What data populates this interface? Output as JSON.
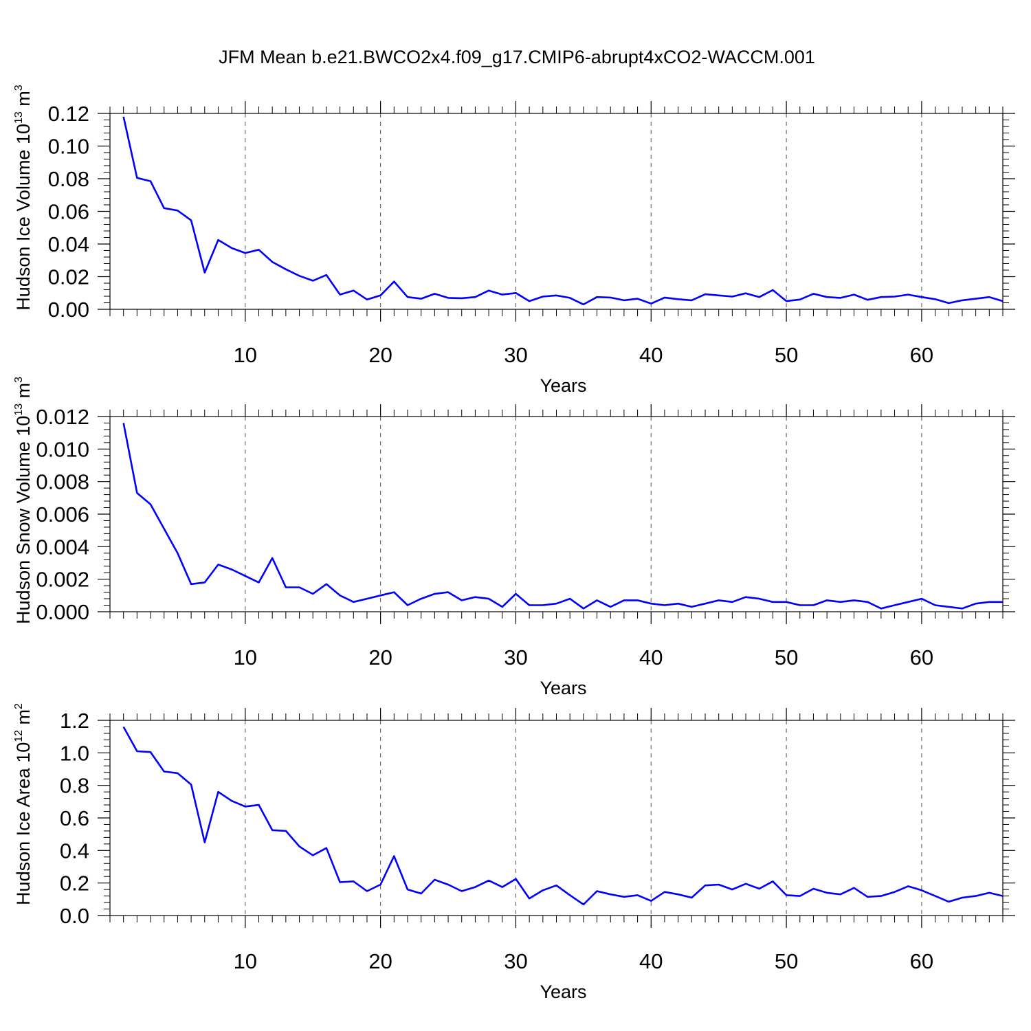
{
  "title": "JFM Mean b.e21.BWCO2x4.f09_g17.CMIP6-abrupt4xCO2-WACCM.001",
  "colors": {
    "line": "#0000ff",
    "axis": "#000000",
    "grid": "#555555"
  },
  "chart_data": [
    {
      "type": "line",
      "ylabel_main": "Hudson Ice Volume 10",
      "ylabel_exp": "13",
      "ylabel_unit": "m",
      "ylabel_unit_exp": "3",
      "xlabel": "Years",
      "xlim": [
        0,
        66
      ],
      "ylim": [
        0,
        0.12
      ],
      "x_ticks": [
        10,
        20,
        30,
        40,
        50,
        60
      ],
      "x_tick_labels": [
        "10",
        "20",
        "30",
        "40",
        "50",
        "60"
      ],
      "y_ticks": [
        0,
        0.02,
        0.04,
        0.06,
        0.08,
        0.1,
        0.12
      ],
      "y_tick_labels": [
        "0.00",
        "0.02",
        "0.04",
        "0.06",
        "0.08",
        "0.10",
        "0.12"
      ],
      "x": [
        1,
        2,
        3,
        4,
        5,
        6,
        7,
        8,
        9,
        10,
        11,
        12,
        13,
        14,
        15,
        16,
        17,
        18,
        19,
        20,
        21,
        22,
        23,
        24,
        25,
        26,
        27,
        28,
        29,
        30,
        31,
        32,
        33,
        34,
        35,
        36,
        37,
        38,
        39,
        40,
        41,
        42,
        43,
        44,
        45,
        46,
        47,
        48,
        49,
        50,
        51,
        52,
        53,
        54,
        55,
        56,
        57,
        58,
        59,
        60,
        61,
        62,
        63,
        64,
        65,
        66
      ],
      "values": [
        0.118,
        0.0805,
        0.0785,
        0.062,
        0.0605,
        0.0545,
        0.0225,
        0.0425,
        0.0375,
        0.0345,
        0.0365,
        0.029,
        0.0245,
        0.0205,
        0.0175,
        0.021,
        0.009,
        0.0115,
        0.006,
        0.0085,
        0.017,
        0.0075,
        0.0065,
        0.0095,
        0.007,
        0.0068,
        0.0075,
        0.0115,
        0.009,
        0.01,
        0.005,
        0.0078,
        0.0085,
        0.007,
        0.003,
        0.0075,
        0.0072,
        0.0055,
        0.0065,
        0.0035,
        0.0072,
        0.0062,
        0.0055,
        0.0092,
        0.0085,
        0.0078,
        0.0098,
        0.0075,
        0.0118,
        0.005,
        0.006,
        0.0095,
        0.0075,
        0.007,
        0.009,
        0.0058,
        0.0075,
        0.0078,
        0.009,
        0.0075,
        0.0062,
        0.0038,
        0.0055,
        0.0065,
        0.0075,
        0.005
      ]
    },
    {
      "type": "line",
      "ylabel_main": "Hudson Snow Volume 10",
      "ylabel_exp": "13",
      "ylabel_unit": "m",
      "ylabel_unit_exp": "3",
      "xlabel": "Years",
      "xlim": [
        0,
        66
      ],
      "ylim": [
        0,
        0.012
      ],
      "x_ticks": [
        10,
        20,
        30,
        40,
        50,
        60
      ],
      "x_tick_labels": [
        "10",
        "20",
        "30",
        "40",
        "50",
        "60"
      ],
      "y_ticks": [
        0,
        0.002,
        0.004,
        0.006,
        0.008,
        0.01,
        0.012
      ],
      "y_tick_labels": [
        "0.000",
        "0.002",
        "0.004",
        "0.006",
        "0.008",
        "0.010",
        "0.012"
      ],
      "x": [
        1,
        2,
        3,
        4,
        5,
        6,
        7,
        8,
        9,
        10,
        11,
        12,
        13,
        14,
        15,
        16,
        17,
        18,
        19,
        20,
        21,
        22,
        23,
        24,
        25,
        26,
        27,
        28,
        29,
        30,
        31,
        32,
        33,
        34,
        35,
        36,
        37,
        38,
        39,
        40,
        41,
        42,
        43,
        44,
        45,
        46,
        47,
        48,
        49,
        50,
        51,
        52,
        53,
        54,
        55,
        56,
        57,
        58,
        59,
        60,
        61,
        62,
        63,
        64,
        65,
        66
      ],
      "values": [
        0.0116,
        0.0073,
        0.0066,
        0.0051,
        0.0036,
        0.0017,
        0.0018,
        0.0029,
        0.0026,
        0.0022,
        0.0018,
        0.0033,
        0.0015,
        0.0015,
        0.0011,
        0.0017,
        0.001,
        0.0006,
        0.0008,
        0.001,
        0.0012,
        0.0004,
        0.0008,
        0.0011,
        0.0012,
        0.0007,
        0.0009,
        0.0008,
        0.0003,
        0.0011,
        0.0004,
        0.0004,
        0.0005,
        0.0008,
        0.0002,
        0.0007,
        0.0003,
        0.0007,
        0.0007,
        0.0005,
        0.0004,
        0.0005,
        0.0003,
        0.0005,
        0.0007,
        0.0006,
        0.0009,
        0.0008,
        0.0006,
        0.0006,
        0.0004,
        0.0004,
        0.0007,
        0.0006,
        0.0007,
        0.0006,
        0.0002,
        0.0004,
        0.0006,
        0.0008,
        0.0004,
        0.0003,
        0.0002,
        0.0005,
        0.0006,
        0.0006
      ]
    },
    {
      "type": "line",
      "ylabel_main": "Hudson Ice Area 10",
      "ylabel_exp": "12",
      "ylabel_unit": "m",
      "ylabel_unit_exp": "2",
      "xlabel": "Years",
      "xlim": [
        0,
        66
      ],
      "ylim": [
        0,
        1.2
      ],
      "x_ticks": [
        10,
        20,
        30,
        40,
        50,
        60
      ],
      "x_tick_labels": [
        "10",
        "20",
        "30",
        "40",
        "50",
        "60"
      ],
      "y_ticks": [
        0,
        0.2,
        0.4,
        0.6,
        0.8,
        1.0,
        1.2
      ],
      "y_tick_labels": [
        "0.0",
        "0.2",
        "0.4",
        "0.6",
        "0.8",
        "1.0",
        "1.2"
      ],
      "x": [
        1,
        2,
        3,
        4,
        5,
        6,
        7,
        8,
        9,
        10,
        11,
        12,
        13,
        14,
        15,
        16,
        17,
        18,
        19,
        20,
        21,
        22,
        23,
        24,
        25,
        26,
        27,
        28,
        29,
        30,
        31,
        32,
        33,
        34,
        35,
        36,
        37,
        38,
        39,
        40,
        41,
        42,
        43,
        44,
        45,
        46,
        47,
        48,
        49,
        50,
        51,
        52,
        53,
        54,
        55,
        56,
        57,
        58,
        59,
        60,
        61,
        62,
        63,
        64,
        65,
        66
      ],
      "values": [
        1.16,
        1.01,
        1.005,
        0.885,
        0.875,
        0.805,
        0.45,
        0.76,
        0.705,
        0.67,
        0.68,
        0.525,
        0.52,
        0.425,
        0.37,
        0.415,
        0.205,
        0.21,
        0.15,
        0.19,
        0.365,
        0.16,
        0.135,
        0.22,
        0.19,
        0.15,
        0.175,
        0.215,
        0.175,
        0.225,
        0.105,
        0.155,
        0.185,
        0.125,
        0.068,
        0.15,
        0.13,
        0.115,
        0.125,
        0.09,
        0.145,
        0.13,
        0.11,
        0.185,
        0.19,
        0.16,
        0.195,
        0.165,
        0.21,
        0.125,
        0.12,
        0.165,
        0.14,
        0.13,
        0.17,
        0.115,
        0.12,
        0.145,
        0.18,
        0.155,
        0.12,
        0.085,
        0.11,
        0.12,
        0.14,
        0.12
      ]
    }
  ]
}
